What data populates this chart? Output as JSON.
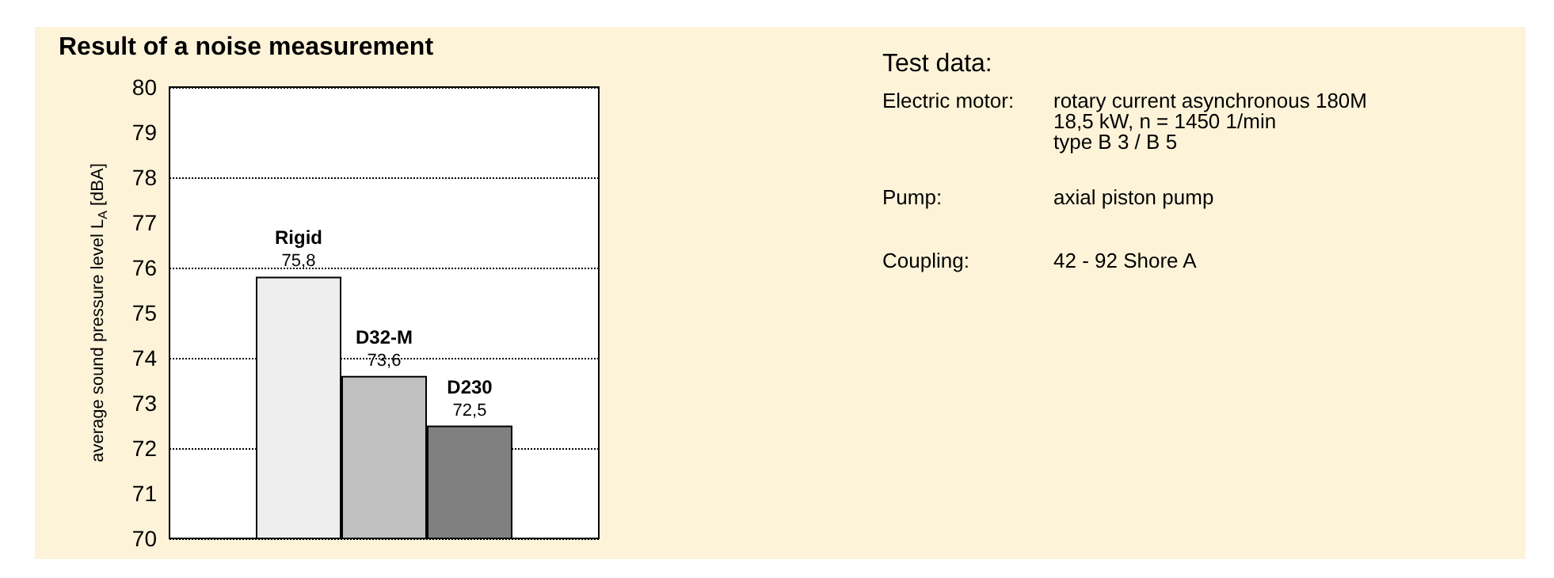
{
  "chart_data": [
    {
      "type": "bar",
      "title": "Result of a noise measurement",
      "ylabel": "average sound pressure level L$_{A}$ [dBA]",
      "categories": [
        "Rigid",
        "D32-M",
        "D230"
      ],
      "values": [
        75.8,
        73.6,
        72.5
      ],
      "colors": [
        "#eeeeee",
        "#c0c0c0",
        "#808080"
      ],
      "value_labels": [
        "75,8",
        "73,6",
        "72,5"
      ],
      "ylim": [
        70,
        80
      ],
      "yticks": [
        70,
        71,
        72,
        73,
        74,
        75,
        76,
        77,
        78,
        79,
        80
      ],
      "grid": "y",
      "line_style": "dotted",
      "tick_labels": "y"
    },
    {
      "type": "other",
      "title": "Test data:",
      "annotations": [
        "Electric motor:",
        "rotary current asynchronous 180M",
        "18,5 kW, n = 1450 1/min",
        "type B 3 / B 5",
        "Pump:",
        "axial piston pump",
        "Coupling:",
        "42 - 92 Shore A"
      ]
    }
  ]
}
